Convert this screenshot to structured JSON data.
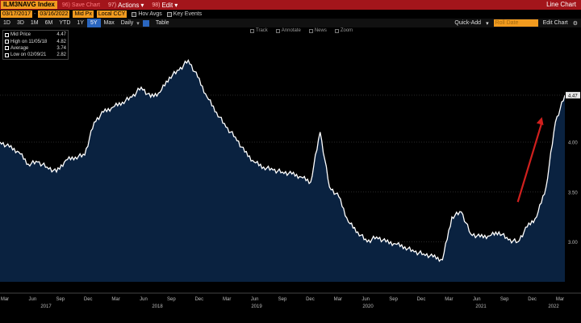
{
  "titlebar": {
    "ticker": "ILM3NAVG Index",
    "faded_label": "96) Save Chart",
    "actions_num": "97)",
    "actions_label": "Actions",
    "edit_num": "98)",
    "edit_label": "Edit",
    "right_label": "Line Chart"
  },
  "options": {
    "start_date": "03/17/2017",
    "end_date": "03/16/2022",
    "price_field": "Mid Px",
    "currency": "Local CCY",
    "hov_avgs_label": "Hov Avgs",
    "key_events_label": "Key Events"
  },
  "toolbar": {
    "ranges": [
      "1D",
      "3D",
      "1M",
      "6M",
      "YTD",
      "1Y",
      "5Y",
      "Max"
    ],
    "active_range": "5Y",
    "period": "Daily",
    "table_label": "Table",
    "quick_add_label": "Quick-Add",
    "rolldate_placeholder": "Roll Date",
    "edit_chart_label": "Edit Chart"
  },
  "chart_tools": [
    "Track",
    "Annotate",
    "News",
    "Zoom"
  ],
  "legend": [
    {
      "label": "Mid Price",
      "value": "4.47"
    },
    {
      "label": "High on 11/05/18",
      "value": "4.82"
    },
    {
      "label": "Average",
      "value": "3.74"
    },
    {
      "label": "Low on 02/09/21",
      "value": "2.82"
    }
  ],
  "colors": {
    "area_fill": "#0a2240",
    "line": "#ffffff",
    "arrow": "#d0201e",
    "last_price_tag": "#e8e8e8"
  },
  "chart_data": {
    "type": "area",
    "series": [
      {
        "name": "Mid Price",
        "unit": "%"
      }
    ],
    "x": [
      "2017-03",
      "2017-04",
      "2017-05",
      "2017-06",
      "2017-07",
      "2017-08",
      "2017-09",
      "2017-10",
      "2017-11",
      "2017-12",
      "2018-01",
      "2018-02",
      "2018-03",
      "2018-04",
      "2018-05",
      "2018-06",
      "2018-07",
      "2018-08",
      "2018-09",
      "2018-10",
      "2018-11",
      "2018-12",
      "2019-01",
      "2019-02",
      "2019-03",
      "2019-04",
      "2019-05",
      "2019-06",
      "2019-07",
      "2019-08",
      "2019-09",
      "2019-10",
      "2019-11",
      "2019-12",
      "2020-01",
      "2020-02",
      "2020-03",
      "2020-04",
      "2020-05",
      "2020-06",
      "2020-07",
      "2020-08",
      "2020-09",
      "2020-10",
      "2020-11",
      "2020-12",
      "2021-01",
      "2021-02",
      "2021-03",
      "2021-04",
      "2021-05",
      "2021-06",
      "2021-07",
      "2021-08",
      "2021-09",
      "2021-10",
      "2021-11",
      "2021-12",
      "2022-01",
      "2022-02",
      "2022-03"
    ],
    "values": [
      4.0,
      3.95,
      3.9,
      3.78,
      3.8,
      3.75,
      3.7,
      3.82,
      3.85,
      3.87,
      4.2,
      4.3,
      4.35,
      4.4,
      4.45,
      4.55,
      4.45,
      4.5,
      4.65,
      4.72,
      4.82,
      4.65,
      4.45,
      4.3,
      4.15,
      4.05,
      3.9,
      3.8,
      3.75,
      3.72,
      3.7,
      3.68,
      3.65,
      3.6,
      4.1,
      3.55,
      3.45,
      3.2,
      3.1,
      3.0,
      3.05,
      3.0,
      2.98,
      2.95,
      2.9,
      2.88,
      2.85,
      2.82,
      3.25,
      3.3,
      3.08,
      3.05,
      3.06,
      3.1,
      3.02,
      3.0,
      3.15,
      3.25,
      3.55,
      4.2,
      4.47
    ],
    "y_ticks": [
      "3.00",
      "3.50",
      "4.00",
      "4.47"
    ],
    "ylim": [
      2.6,
      5.1
    ],
    "last_value": "4.47",
    "x_month_labels": [
      "Mar",
      "Jun",
      "Sep",
      "Dec",
      "Mar",
      "Jun",
      "Sep",
      "Dec",
      "Mar",
      "Jun",
      "Sep",
      "Dec",
      "Mar",
      "Jun",
      "Sep",
      "Dec",
      "Mar",
      "Jun",
      "Sep",
      "Dec",
      "Mar"
    ],
    "x_year_labels": [
      "2017",
      "2018",
      "2019",
      "2020",
      "2021",
      "2022"
    ],
    "grid": true,
    "legend_position": "top-left",
    "annotation": {
      "type": "arrow",
      "from": [
        "2021-10",
        3.4
      ],
      "to": [
        "2022-01",
        4.25
      ]
    }
  }
}
